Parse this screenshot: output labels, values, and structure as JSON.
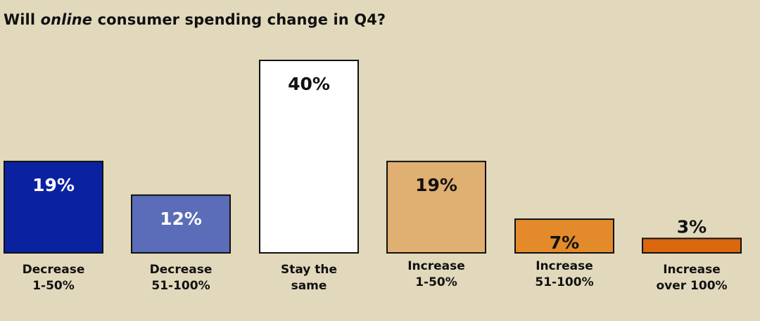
{
  "title": {
    "before": "Will ",
    "emphasis": "online",
    "after": " consumer spending change in Q4?"
  },
  "chart_data": {
    "type": "bar",
    "title": "Will online consumer spending change in Q4?",
    "categories": [
      [
        "Decrease",
        "1-50%"
      ],
      [
        "Decrease",
        "51-100%"
      ],
      [
        "Stay the",
        "same"
      ],
      [
        "Increase",
        "1-50%"
      ],
      [
        "Increase",
        "51-100%"
      ],
      [
        "Increase",
        "over 100%"
      ]
    ],
    "values": [
      19,
      12,
      40,
      19,
      7,
      3
    ],
    "value_labels": [
      "19%",
      "12%",
      "40%",
      "19%",
      "7%",
      "3%"
    ],
    "colors": [
      "#0a22a0",
      "#5b6cb8",
      "#ffffff",
      "#e0af72",
      "#e38a2a",
      "#d9680f"
    ],
    "label_colors": [
      "#ffffff",
      "#ffffff",
      "#111111",
      "#111111",
      "#111111",
      "#111111"
    ],
    "label_outside": [
      false,
      false,
      false,
      false,
      false,
      true
    ],
    "ylim": [
      0,
      40
    ],
    "grid": false,
    "legend": "none"
  }
}
